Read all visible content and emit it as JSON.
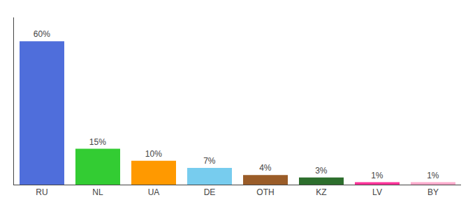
{
  "chart_data": {
    "type": "bar",
    "categories": [
      "RU",
      "NL",
      "UA",
      "DE",
      "OTH",
      "KZ",
      "LV",
      "BY"
    ],
    "values": [
      60,
      15,
      10,
      7,
      4,
      3,
      1,
      1
    ],
    "value_labels": [
      "60%",
      "15%",
      "10%",
      "7%",
      "4%",
      "3%",
      "1%",
      "1%"
    ],
    "colors": [
      "#4f6edb",
      "#33cc33",
      "#ff9900",
      "#77ccee",
      "#9a5c28",
      "#2d6e2d",
      "#ff3399",
      "#ffaacc"
    ],
    "ylim": [
      0,
      70
    ],
    "data_labels": true,
    "tick_labels": "x",
    "grid": false
  }
}
